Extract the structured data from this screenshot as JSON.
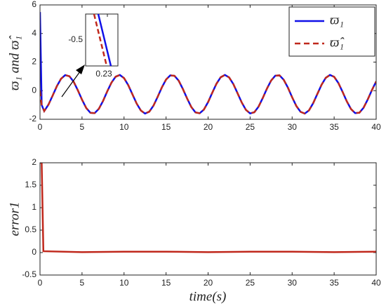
{
  "chart_data": [
    {
      "type": "line",
      "ylabel": "ϖ₁ and ϖ̂₁",
      "annotations": [
        "-0.5",
        "0.23"
      ],
      "xlim": [
        0,
        40
      ],
      "xticks": [
        0,
        5,
        10,
        15,
        20,
        25,
        30,
        35,
        40
      ],
      "ylim": [
        -2,
        6
      ],
      "yticks": [
        -2,
        0,
        2,
        4,
        6
      ],
      "grid": false,
      "legend": "upper right",
      "x": [
        0,
        0.2,
        0.5,
        1,
        1.5,
        2,
        2.5,
        3,
        3.5,
        4,
        4.5,
        5,
        5.5,
        6,
        6.5,
        7,
        7.5,
        8,
        8.5,
        9,
        9.5,
        10,
        10.5,
        11,
        11.5,
        12,
        12.5,
        13,
        13.5,
        14,
        14.5,
        15,
        15.5,
        16,
        16.5,
        17,
        17.5,
        18,
        18.5,
        19,
        19.5,
        20,
        20.5,
        21,
        21.5,
        22,
        22.5,
        23,
        23.5,
        24,
        24.5,
        25,
        25.5,
        26,
        26.5,
        27,
        27.5,
        28,
        28.5,
        29,
        29.5,
        30,
        30.5,
        31,
        31.5,
        32,
        32.5,
        33,
        33.5,
        34,
        34.5,
        35,
        35.5,
        36,
        36.5,
        37,
        37.5,
        38,
        38.5,
        39,
        39.5,
        40
      ],
      "series": [
        {
          "name": "ϖ₁",
          "color": "#1010e8",
          "dash": false,
          "values": [
            5.5,
            -1.0,
            -1.43,
            -0.98,
            -0.35,
            0.31,
            0.83,
            1.09,
            1.01,
            0.63,
            0.03,
            -0.63,
            -1.21,
            -1.55,
            -1.57,
            -1.27,
            -0.72,
            -0.05,
            0.56,
            0.98,
            1.1,
            0.88,
            0.39,
            -0.26,
            -0.9,
            -1.39,
            -1.6,
            -1.47,
            -1.05,
            -0.43,
            0.23,
            0.78,
            1.07,
            1.04,
            0.7,
            0.12,
            -0.54,
            -1.14,
            -1.52,
            -1.58,
            -1.32,
            -0.8,
            -0.14,
            0.49,
            0.94,
            1.1,
            0.93,
            0.47,
            -0.17,
            -0.82,
            -1.34,
            -1.59,
            -1.51,
            -1.12,
            -0.52,
            0.14,
            0.71,
            1.05,
            1.07,
            0.76,
            0.21,
            -0.46,
            -1.07,
            -1.48,
            -1.6,
            -1.38,
            -0.88,
            -0.23,
            0.41,
            0.9,
            1.1,
            0.97,
            0.54,
            -0.08,
            -0.74,
            -1.28,
            -1.57,
            -1.54,
            -1.19,
            -0.61,
            0.05,
            0.65
          ]
        },
        {
          "name": "ϖ̂₁",
          "color": "#c0281c",
          "dash": true,
          "values": [
            0,
            -1.0,
            -1.43,
            -0.98,
            -0.35,
            0.31,
            0.83,
            1.09,
            1.01,
            0.63,
            0.03,
            -0.63,
            -1.21,
            -1.55,
            -1.57,
            -1.27,
            -0.72,
            -0.05,
            0.56,
            0.98,
            1.1,
            0.88,
            0.39,
            -0.26,
            -0.9,
            -1.39,
            -1.6,
            -1.47,
            -1.05,
            -0.43,
            0.23,
            0.78,
            1.07,
            1.04,
            0.7,
            0.12,
            -0.54,
            -1.14,
            -1.52,
            -1.58,
            -1.32,
            -0.8,
            -0.14,
            0.49,
            0.94,
            1.1,
            0.93,
            0.47,
            -0.17,
            -0.82,
            -1.34,
            -1.59,
            -1.51,
            -1.12,
            -0.52,
            0.14,
            0.71,
            1.05,
            1.07,
            0.76,
            0.21,
            -0.46,
            -1.07,
            -1.48,
            -1.6,
            -1.38,
            -0.88,
            -0.23,
            0.41,
            0.9,
            1.1,
            0.97,
            0.54,
            -0.08,
            -0.74,
            -1.28,
            -1.57,
            -1.54,
            -1.19,
            -0.61,
            0.05,
            0.65
          ]
        }
      ]
    },
    {
      "type": "line",
      "ylabel": "error1",
      "xlabel": "time(s)",
      "xlim": [
        0,
        40
      ],
      "xticks": [
        0,
        5,
        10,
        15,
        20,
        25,
        30,
        35,
        40
      ],
      "ylim": [
        -0.5,
        2
      ],
      "yticks": [
        -0.5,
        0,
        0.5,
        1,
        1.5,
        2
      ],
      "grid": false,
      "x": [
        0,
        0.2,
        0.4,
        5,
        10,
        15,
        20,
        25,
        30,
        35,
        40
      ],
      "series": [
        {
          "color": "#c0281c",
          "dash": false,
          "values": [
            2,
            2,
            0.03,
            0.01,
            0.02,
            0.02,
            0.01,
            0.02,
            0.02,
            0.01,
            0.02
          ]
        }
      ]
    }
  ]
}
